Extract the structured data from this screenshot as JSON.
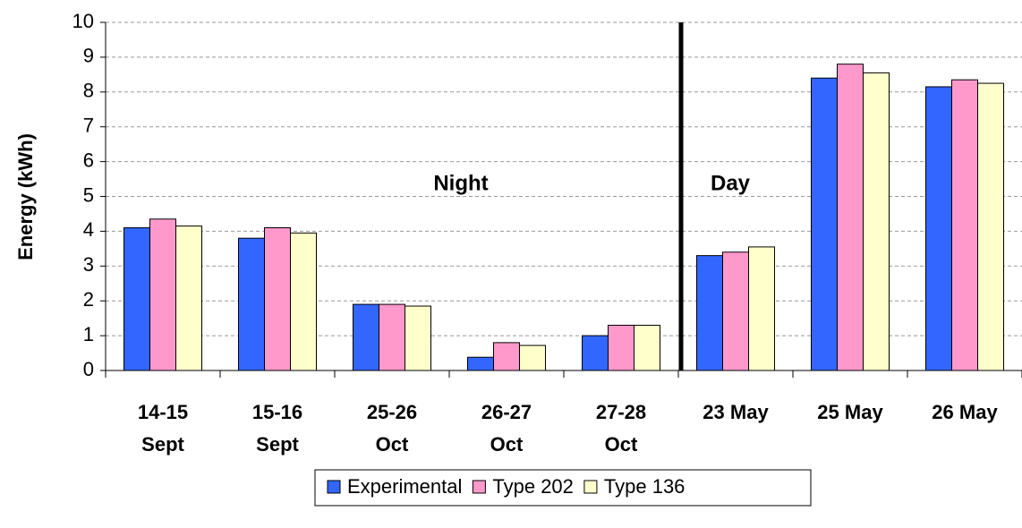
{
  "chart_data": {
    "type": "bar",
    "y_label": "Energy (kWh)",
    "categories": [
      [
        "14-15",
        "Sept"
      ],
      [
        "15-16",
        "Sept"
      ],
      [
        "25-26",
        "Oct"
      ],
      [
        "26-27",
        "Oct"
      ],
      [
        "27-28",
        "Oct"
      ],
      [
        "23 May"
      ],
      [
        "25 May"
      ],
      [
        "26 May"
      ]
    ],
    "series": [
      {
        "name": "Experimental",
        "color": "#3366ff",
        "values": [
          4.1,
          3.8,
          1.9,
          0.38,
          1.0,
          3.3,
          8.4,
          8.15
        ]
      },
      {
        "name": "Type 202",
        "color": "#ff99cc",
        "values": [
          4.35,
          4.1,
          1.9,
          0.8,
          1.3,
          3.4,
          8.8,
          8.35
        ]
      },
      {
        "name": "Type 136",
        "color": "#ffffcc",
        "values": [
          4.15,
          3.95,
          1.85,
          0.72,
          1.3,
          3.55,
          8.55,
          8.25
        ]
      }
    ],
    "annotations": [
      "Night",
      "Day"
    ],
    "ylim": [
      0,
      10
    ],
    "yticks": [
      0,
      1,
      2,
      3,
      4,
      5,
      6,
      7,
      8,
      9,
      10
    ],
    "grid": true
  }
}
